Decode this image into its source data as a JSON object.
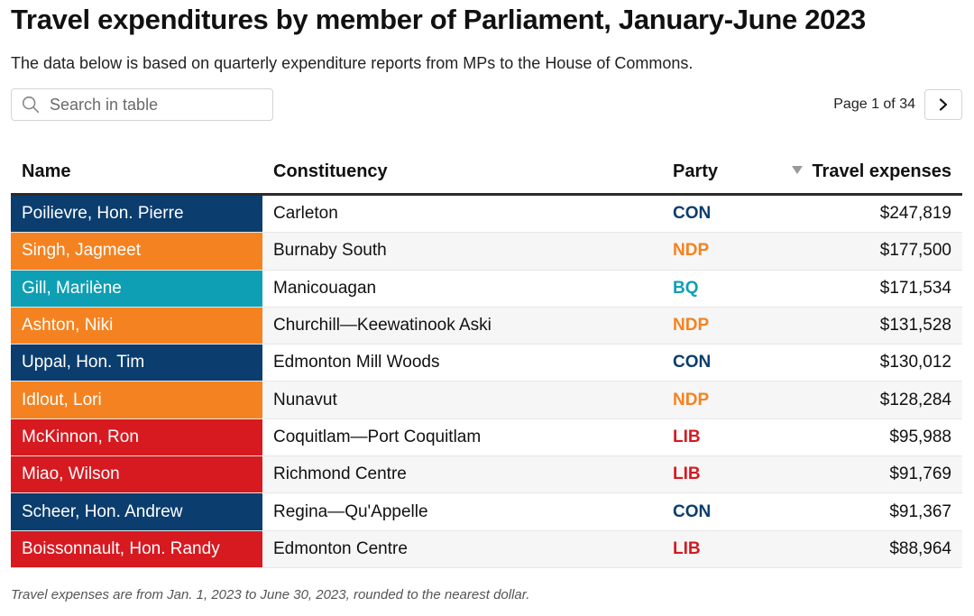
{
  "header": {
    "title": "Travel expenditures by member of Parliament, January-June 2023",
    "subtitle": "The data below is based on quarterly expenditure reports from MPs to the House of Commons."
  },
  "search": {
    "placeholder": "Search in table",
    "icon": "search-icon"
  },
  "pagination": {
    "label": "Page 1 of 34",
    "next_icon": "chevron-right-icon"
  },
  "party_colors": {
    "CON": "#0b3d6e",
    "NDP": "#f58220",
    "BQ": "#0f9fb4",
    "LIB": "#d71920"
  },
  "chart_data": {
    "type": "table",
    "columns": [
      "Name",
      "Constituency",
      "Party",
      "Travel expenses"
    ],
    "sort": {
      "column": "Travel expenses",
      "direction": "descending"
    },
    "rows": [
      {
        "name": "Poilievre, Hon. Pierre",
        "constituency": "Carleton",
        "party": "CON",
        "expenses": "$247,819",
        "value": 247819
      },
      {
        "name": "Singh, Jagmeet",
        "constituency": "Burnaby South",
        "party": "NDP",
        "expenses": "$177,500",
        "value": 177500
      },
      {
        "name": "Gill, Marilène",
        "constituency": "Manicouagan",
        "party": "BQ",
        "expenses": "$171,534",
        "value": 171534
      },
      {
        "name": "Ashton, Niki",
        "constituency": "Churchill—Keewatinook Aski",
        "party": "NDP",
        "expenses": "$131,528",
        "value": 131528
      },
      {
        "name": "Uppal, Hon. Tim",
        "constituency": "Edmonton Mill Woods",
        "party": "CON",
        "expenses": "$130,012",
        "value": 130012
      },
      {
        "name": "Idlout, Lori",
        "constituency": "Nunavut",
        "party": "NDP",
        "expenses": "$128,284",
        "value": 128284
      },
      {
        "name": "McKinnon, Ron",
        "constituency": "Coquitlam—Port Coquitlam",
        "party": "LIB",
        "expenses": "$95,988",
        "value": 95988
      },
      {
        "name": "Miao, Wilson",
        "constituency": "Richmond Centre",
        "party": "LIB",
        "expenses": "$91,769",
        "value": 91769
      },
      {
        "name": "Scheer, Hon. Andrew",
        "constituency": "Regina—Qu'Appelle",
        "party": "CON",
        "expenses": "$91,367",
        "value": 91367
      },
      {
        "name": "Boissonnault, Hon. Randy",
        "constituency": "Edmonton Centre",
        "party": "LIB",
        "expenses": "$88,964",
        "value": 88964
      }
    ]
  },
  "footnote": "Travel expenses are from Jan. 1, 2023 to June 30, 2023, rounded to the nearest dollar."
}
